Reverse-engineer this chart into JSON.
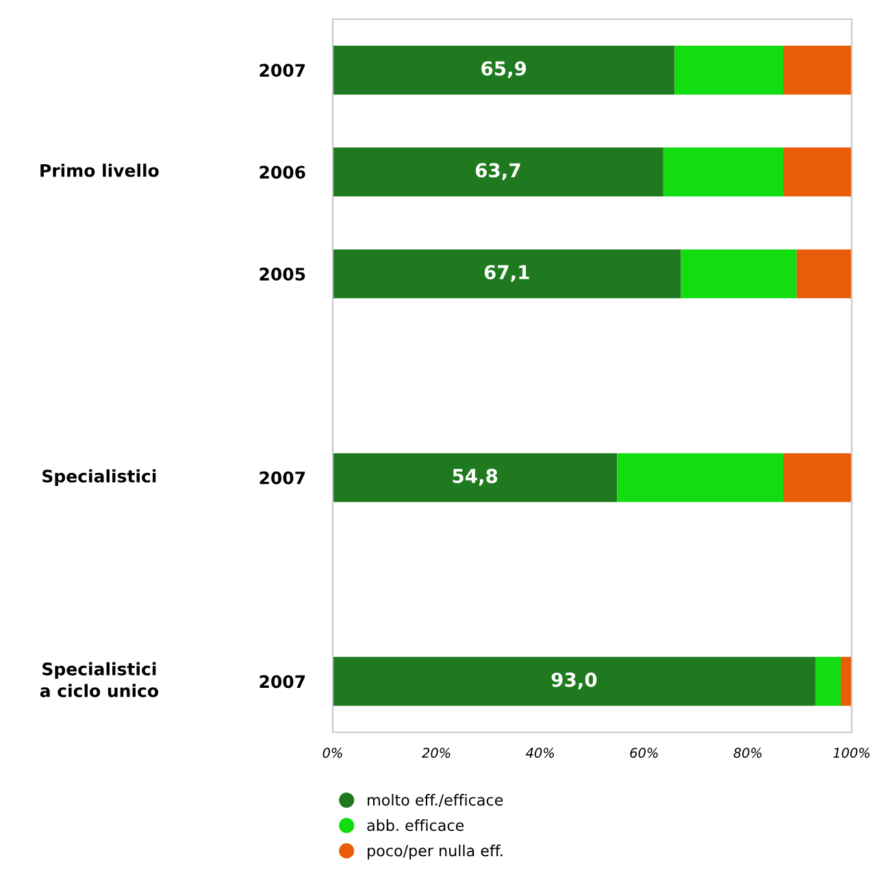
{
  "chart_data": {
    "type": "bar",
    "orientation": "horizontal",
    "stacked": true,
    "categories": [
      "2007",
      "2006",
      "2005",
      null,
      "2007",
      null,
      "2007"
    ],
    "annotations": [
      "Primo livello",
      "Specialistici",
      "Specialistici\na ciclo unico"
    ],
    "series": [
      {
        "name": "molto eff./efficace",
        "color": "#1f7a1f",
        "values": [
          65.9,
          63.7,
          67.1,
          null,
          54.8,
          null,
          93.0
        ],
        "value_labels": [
          "65,9",
          "63,7",
          "67,1",
          null,
          "54,8",
          null,
          "93,0"
        ]
      },
      {
        "name": "abb. efficace",
        "color": "#11dd11",
        "values": [
          20.9,
          23.1,
          22.3,
          null,
          32.0,
          null,
          4.9
        ]
      },
      {
        "name": "poco/per nulla eff.",
        "color": "#e85c0a",
        "values": [
          13.2,
          13.2,
          10.6,
          null,
          13.2,
          null,
          2.1
        ]
      }
    ],
    "xlim": [
      0,
      100
    ],
    "xticks": [
      {
        "value": 0,
        "label": "0%"
      },
      {
        "value": 20,
        "label": "20%"
      },
      {
        "value": 40,
        "label": "40%"
      },
      {
        "value": 60,
        "label": "60%"
      },
      {
        "value": 80,
        "label": "80%"
      },
      {
        "value": 100,
        "label": "100%"
      }
    ],
    "legend": "bottom",
    "marker": "circle",
    "grid": false
  }
}
